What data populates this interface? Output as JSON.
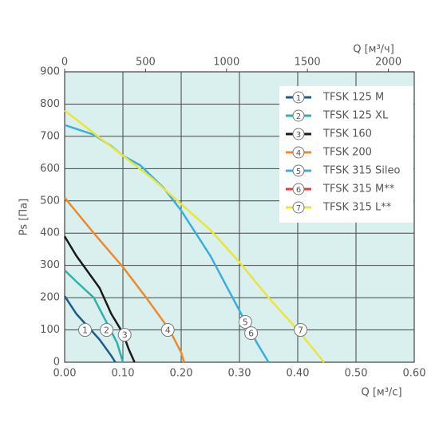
{
  "chart_data": {
    "type": "line",
    "xlabel": "Q [м³/с]",
    "ylabel": "Ps [Па]",
    "x2label": "Q [м³/ч]",
    "xlim": [
      0,
      0.6
    ],
    "ylim": [
      0,
      900
    ],
    "x2lim": [
      0,
      2160
    ],
    "xticks": [
      {
        "value": 0,
        "label": "0.00"
      },
      {
        "value": 0.1,
        "label": "0.10"
      },
      {
        "value": 0.2,
        "label": "0.20"
      },
      {
        "value": 0.3,
        "label": "0.30"
      },
      {
        "value": 0.4,
        "label": "0.40"
      },
      {
        "value": 0.5,
        "label": "0.50"
      },
      {
        "value": 0.6,
        "label": "0.60"
      }
    ],
    "yticks": [
      0,
      100,
      200,
      300,
      400,
      500,
      600,
      700,
      800,
      900
    ],
    "x2ticks": [
      0,
      500,
      1000,
      1500,
      2000
    ],
    "grid": true,
    "legend": "upper right",
    "series": [
      {
        "name": "TFSK 125 M",
        "label": "1",
        "color": "#1b5c8c",
        "label_x": 0.035,
        "label_y": 100,
        "x": [
          0,
          0.02,
          0.04,
          0.06,
          0.08,
          0.087
        ],
        "y": [
          205,
          150,
          110,
          70,
          20,
          0
        ]
      },
      {
        "name": "TFSK 125 XL",
        "label": "2",
        "color": "#2bb3a9",
        "label_x": 0.072,
        "label_y": 100,
        "x": [
          0,
          0.02,
          0.05,
          0.07,
          0.09,
          0.1
        ],
        "y": [
          285,
          250,
          200,
          130,
          60,
          0
        ]
      },
      {
        "name": "TFSK 160",
        "label": "3",
        "color": "#1a1a1a",
        "label_x": 0.103,
        "label_y": 85,
        "x": [
          0,
          0.02,
          0.06,
          0.08,
          0.1,
          0.11,
          0.12
        ],
        "y": [
          390,
          330,
          230,
          150,
          90,
          40,
          0
        ]
      },
      {
        "name": "TFSK 200",
        "label": "4",
        "color": "#ef8a2c",
        "label_x": 0.177,
        "label_y": 100,
        "x": [
          0,
          0.05,
          0.1,
          0.14,
          0.18,
          0.2,
          0.205
        ],
        "y": [
          510,
          400,
          295,
          200,
          100,
          30,
          0
        ]
      },
      {
        "name": "TFSK 315 Sileo",
        "label": "5",
        "color": "#3aaee0",
        "label_x": 0.31,
        "label_y": 125,
        "x": [
          0,
          0.05,
          0.08,
          0.1,
          0.13,
          0.17,
          0.2,
          0.25,
          0.3,
          0.33,
          0.35
        ],
        "y": [
          735,
          705,
          670,
          640,
          610,
          540,
          470,
          330,
          160,
          60,
          0
        ]
      },
      {
        "name": "TFSK 315 M**",
        "label": "6",
        "color": "#e2403a",
        "label_x": 0.32,
        "label_y": 90,
        "x": [],
        "y": []
      },
      {
        "name": "TFSK 315 L**",
        "label": "7",
        "color": "#e8e63a",
        "label_x": 0.405,
        "label_y": 100,
        "x": [
          0,
          0.05,
          0.1,
          0.15,
          0.2,
          0.25,
          0.3,
          0.35,
          0.4,
          0.445
        ],
        "y": [
          780,
          710,
          640,
          570,
          490,
          410,
          310,
          200,
          100,
          0
        ]
      }
    ]
  }
}
